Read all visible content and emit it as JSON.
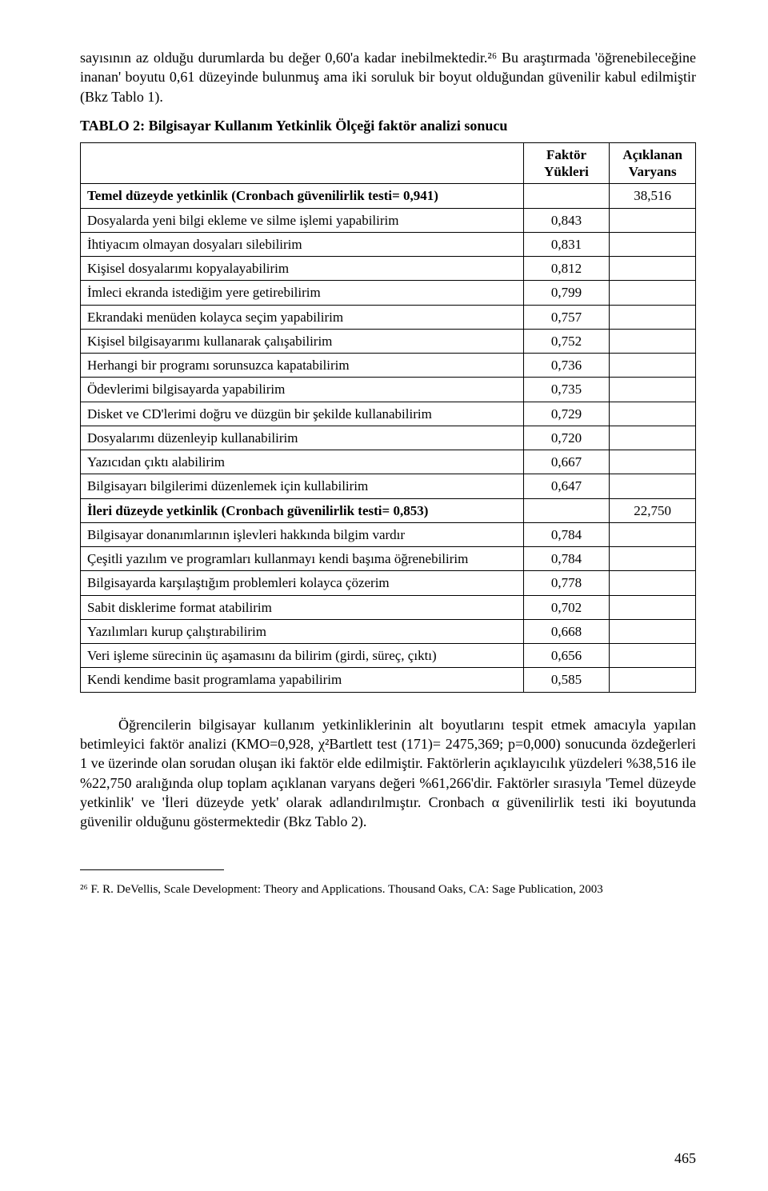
{
  "para1": "sayısının az olduğu durumlarda bu değer 0,60'a kadar inebilmektedir.²⁶ Bu araştırmada 'öğrenebileceğine inanan' boyutu 0,61 düzeyinde bulunmuş ama iki soruluk bir boyut olduğundan güvenilir kabul edilmiştir (Bkz Tablo 1).",
  "tableTitle": "TABLO 2: Bilgisayar Kullanım Yetkinlik Ölçeği faktör analizi sonucu",
  "headers": {
    "item": "",
    "faktor": "Faktör Yükleri",
    "varyans": "Açıklanan Varyans"
  },
  "rows": [
    {
      "item": "Temel düzeyde yetkinlik (Cronbach güvenilirlik testi= 0,941)",
      "faktor": "",
      "var": "38,516",
      "bold": true
    },
    {
      "item": "Dosyalarda yeni bilgi ekleme ve silme işlemi yapabilirim",
      "faktor": "0,843",
      "var": ""
    },
    {
      "item": "İhtiyacım olmayan dosyaları silebilirim",
      "faktor": "0,831",
      "var": ""
    },
    {
      "item": "Kişisel dosyalarımı kopyalayabilirim",
      "faktor": "0,812",
      "var": ""
    },
    {
      "item": "İmleci ekranda istediğim yere getirebilirim",
      "faktor": "0,799",
      "var": ""
    },
    {
      "item": "Ekrandaki menüden kolayca seçim yapabilirim",
      "faktor": "0,757",
      "var": ""
    },
    {
      "item": "Kişisel bilgisayarımı kullanarak çalışabilirim",
      "faktor": "0,752",
      "var": ""
    },
    {
      "item": "Herhangi bir programı sorunsuzca kapatabilirim",
      "faktor": "0,736",
      "var": ""
    },
    {
      "item": "Ödevlerimi bilgisayarda yapabilirim",
      "faktor": "0,735",
      "var": ""
    },
    {
      "item": "Disket ve CD'lerimi doğru ve düzgün bir şekilde kullanabilirim",
      "faktor": "0,729",
      "var": ""
    },
    {
      "item": "Dosyalarımı düzenleyip kullanabilirim",
      "faktor": "0,720",
      "var": ""
    },
    {
      "item": "Yazıcıdan çıktı alabilirim",
      "faktor": "0,667",
      "var": ""
    },
    {
      "item": "Bilgisayarı bilgilerimi düzenlemek için kullabilirim",
      "faktor": "0,647",
      "var": ""
    },
    {
      "item": "İleri düzeyde yetkinlik (Cronbach güvenilirlik testi= 0,853)",
      "faktor": "",
      "var": "22,750",
      "bold": true
    },
    {
      "item": "Bilgisayar donanımlarının işlevleri hakkında bilgim vardır",
      "faktor": "0,784",
      "var": ""
    },
    {
      "item": "Çeşitli yazılım ve programları kullanmayı kendi başıma öğrenebilirim",
      "faktor": "0,784",
      "var": ""
    },
    {
      "item": "Bilgisayarda karşılaştığım problemleri kolayca çözerim",
      "faktor": "0,778",
      "var": ""
    },
    {
      "item": "Sabit disklerime format atabilirim",
      "faktor": "0,702",
      "var": ""
    },
    {
      "item": "Yazılımları kurup çalıştırabilirim",
      "faktor": "0,668",
      "var": ""
    },
    {
      "item": "Veri işleme sürecinin üç aşamasını da bilirim (girdi, süreç, çıktı)",
      "faktor": "0,656",
      "var": ""
    },
    {
      "item": "Kendi kendime basit programlama yapabilirim",
      "faktor": "0,585",
      "var": ""
    }
  ],
  "para2": "Öğrencilerin bilgisayar kullanım yetkinliklerinin alt boyutlarını tespit etmek amacıyla yapılan betimleyici faktör analizi (KMO=0,928, χ²Bartlett test (171)= 2475,369; p=0,000) sonucunda özdeğerleri 1 ve üzerinde olan sorudan oluşan iki faktör elde edilmiştir. Faktörlerin açıklayıcılık yüzdeleri %38,516 ile %22,750 aralığında olup toplam açıklanan varyans değeri %61,266'dir. Faktörler sırasıyla 'Temel düzeyde yetkinlik' ve 'İleri düzeyde yetk' olarak adlandırılmıştır. Cronbach α güvenilirlik testi iki boyutunda güvenilir olduğunu göstermektedir (Bkz Tablo 2).",
  "footnote": "²⁶ F. R. DeVellis, Scale Development: Theory and Applications. Thousand Oaks, CA: Sage Publication, 2003",
  "pageNumber": "465"
}
